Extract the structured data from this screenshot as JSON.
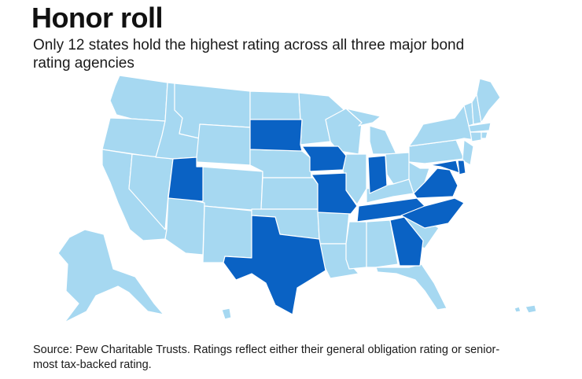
{
  "title": "Honor roll",
  "subtitle": "Only 12 states hold the highest rating across all three major bond rating agencies",
  "source": "Source: Pew Charitable Trusts. Ratings reflect either their general obligation rating or senior-most tax-backed rating.",
  "colors": {
    "highest_rating": "#0a62c4",
    "other": "#a6d8f1"
  },
  "highest_rated_states": [
    "Utah",
    "South Dakota",
    "Iowa",
    "Missouri",
    "Indiana",
    "Texas",
    "Tennessee",
    "Georgia",
    "North Carolina",
    "Virginia",
    "Maryland",
    "Delaware"
  ]
}
